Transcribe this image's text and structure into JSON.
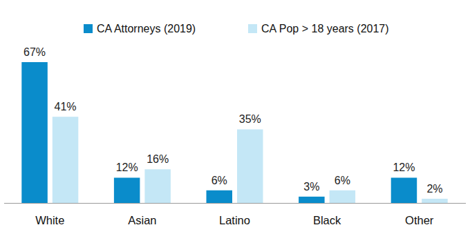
{
  "chart_data": {
    "type": "bar",
    "categories": [
      "White",
      "Asian",
      "Latino",
      "Black",
      "Other"
    ],
    "series": [
      {
        "name": "CA Attorneys (2019)",
        "color": "#0a8ccb",
        "values": [
          67,
          12,
          6,
          3,
          12
        ],
        "value_labels": [
          "67%",
          "12%",
          "6%",
          "3%",
          "12%"
        ]
      },
      {
        "name": "CA Pop > 18 years (2017)",
        "color": "#c4e7f6",
        "values": [
          41,
          16,
          35,
          6,
          2
        ],
        "value_labels": [
          "41%",
          "16%",
          "35%",
          "6%",
          "2%"
        ]
      }
    ],
    "ylim": [
      0,
      67
    ],
    "data_labels": true,
    "tick_labels": "x",
    "legend": "top",
    "grid": false
  }
}
